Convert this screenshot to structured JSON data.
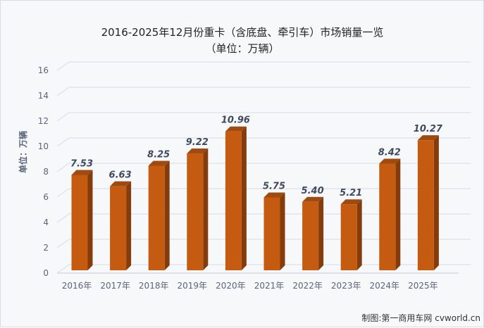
{
  "chart_data": {
    "type": "bar",
    "title": "2016-2025年12月份重卡（含底盘、牵引车）市场销量一览",
    "subtitle": "（单位：万辆）",
    "ylabel": "单位：万辆",
    "xlabel": "",
    "categories": [
      "2016年",
      "2017年",
      "2018年",
      "2019年",
      "2020年",
      "2021年",
      "2022年",
      "2023年",
      "2024年",
      "2025年"
    ],
    "values": [
      7.53,
      6.63,
      8.25,
      9.22,
      10.96,
      5.75,
      5.4,
      5.21,
      8.42,
      10.27
    ],
    "data_labels": [
      "7.53",
      "6.63",
      "8.25",
      "9.22",
      "10.96",
      "5.75",
      "5.40",
      "5.21",
      "8.42",
      "10.27"
    ],
    "ylim": [
      0,
      16
    ],
    "yticks": [
      "0",
      "2",
      "4",
      "6",
      "8",
      "10",
      "12",
      "14",
      "16"
    ],
    "grid": true,
    "style": "3d-column",
    "colors": {
      "bar_front": "#c55a11",
      "bar_side": "#843c0c",
      "grid": "#e1e5ec"
    },
    "credit": "制图:第一商用车网 cvworld.cn"
  }
}
